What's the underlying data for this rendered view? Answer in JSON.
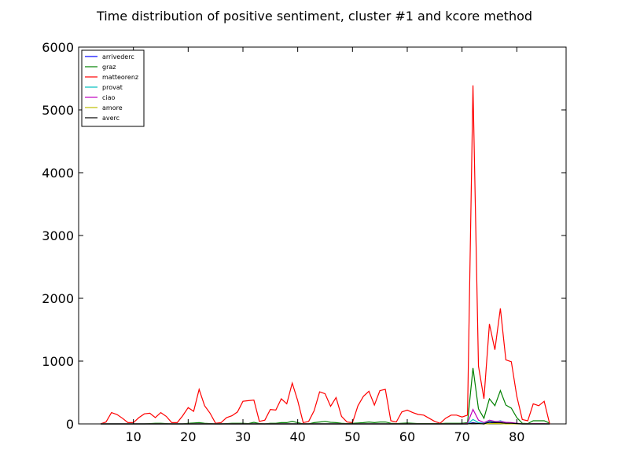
{
  "chart_data": {
    "type": "line",
    "title": "Time distribution of positive sentiment, cluster #1 and kcore method",
    "xlabel": "",
    "ylabel": "",
    "xlim": [
      0,
      89
    ],
    "ylim": [
      0,
      6000
    ],
    "xticks": [
      10,
      20,
      30,
      40,
      50,
      60,
      70,
      80
    ],
    "yticks": [
      0,
      1000,
      2000,
      3000,
      4000,
      5000,
      6000
    ],
    "grid": false,
    "legend_position": "top-left",
    "x": [
      4,
      5,
      6,
      7,
      8,
      9,
      10,
      11,
      12,
      13,
      14,
      15,
      16,
      17,
      18,
      19,
      20,
      21,
      22,
      23,
      24,
      25,
      26,
      27,
      28,
      29,
      30,
      31,
      32,
      33,
      34,
      35,
      36,
      37,
      38,
      39,
      40,
      41,
      42,
      43,
      44,
      45,
      46,
      47,
      48,
      49,
      50,
      51,
      52,
      53,
      54,
      55,
      56,
      57,
      58,
      59,
      60,
      61,
      62,
      63,
      64,
      65,
      66,
      67,
      68,
      69,
      70,
      71,
      72,
      73,
      74,
      75,
      76,
      77,
      78,
      79,
      80,
      81,
      82,
      83,
      84,
      85,
      86
    ],
    "series": [
      {
        "name": "arrivederc",
        "color": "#0000ff",
        "values": [
          0,
          0,
          0,
          0,
          0,
          0,
          0,
          0,
          0,
          0,
          0,
          0,
          0,
          0,
          0,
          0,
          0,
          0,
          0,
          0,
          0,
          0,
          0,
          0,
          0,
          0,
          0,
          0,
          0,
          0,
          0,
          0,
          0,
          0,
          0,
          0,
          0,
          0,
          0,
          0,
          0,
          0,
          0,
          0,
          0,
          0,
          0,
          0,
          0,
          0,
          0,
          0,
          0,
          0,
          0,
          0,
          0,
          0,
          0,
          0,
          0,
          0,
          0,
          0,
          0,
          0,
          0,
          0,
          20,
          5,
          0,
          25,
          15,
          10,
          5,
          5,
          2,
          0,
          0,
          0,
          0,
          0,
          0
        ]
      },
      {
        "name": "graz",
        "color": "#008000",
        "values": [
          0,
          0,
          0,
          0,
          0,
          0,
          0,
          0,
          0,
          5,
          10,
          10,
          5,
          0,
          0,
          0,
          10,
          15,
          20,
          10,
          5,
          0,
          0,
          5,
          10,
          10,
          10,
          5,
          25,
          5,
          0,
          10,
          10,
          20,
          20,
          40,
          20,
          0,
          0,
          20,
          30,
          40,
          25,
          20,
          10,
          5,
          10,
          15,
          20,
          30,
          20,
          30,
          30,
          10,
          5,
          10,
          15,
          10,
          5,
          5,
          5,
          5,
          5,
          10,
          10,
          10,
          10,
          20,
          890,
          240,
          90,
          400,
          290,
          530,
          300,
          250,
          100,
          10,
          5,
          50,
          50,
          50,
          10
        ]
      },
      {
        "name": "matteorenz",
        "color": "#ff0000",
        "values": [
          0,
          30,
          180,
          150,
          90,
          20,
          20,
          100,
          160,
          170,
          100,
          180,
          120,
          20,
          20,
          130,
          260,
          200,
          550,
          290,
          170,
          10,
          20,
          100,
          130,
          190,
          360,
          370,
          380,
          40,
          60,
          230,
          220,
          400,
          320,
          650,
          370,
          20,
          40,
          210,
          510,
          480,
          280,
          420,
          120,
          30,
          20,
          290,
          440,
          520,
          300,
          530,
          550,
          50,
          30,
          190,
          220,
          180,
          150,
          140,
          90,
          40,
          10,
          90,
          140,
          140,
          110,
          140,
          5390,
          920,
          400,
          1590,
          1180,
          1840,
          1020,
          990,
          440,
          70,
          50,
          320,
          290,
          360,
          0
        ]
      },
      {
        "name": "provat",
        "color": "#00bfbf",
        "values": [
          0,
          0,
          0,
          0,
          0,
          0,
          0,
          0,
          0,
          0,
          0,
          0,
          0,
          0,
          0,
          0,
          0,
          0,
          0,
          0,
          0,
          0,
          0,
          0,
          0,
          0,
          0,
          0,
          0,
          0,
          0,
          0,
          0,
          0,
          0,
          0,
          0,
          0,
          0,
          0,
          0,
          0,
          0,
          0,
          0,
          0,
          0,
          0,
          0,
          0,
          0,
          0,
          0,
          0,
          0,
          0,
          0,
          0,
          0,
          0,
          0,
          0,
          0,
          0,
          0,
          0,
          0,
          0,
          70,
          20,
          10,
          40,
          30,
          50,
          20,
          15,
          5,
          0,
          0,
          0,
          0,
          0,
          0
        ]
      },
      {
        "name": "ciao",
        "color": "#bf00bf",
        "values": [
          0,
          0,
          0,
          0,
          0,
          0,
          0,
          0,
          0,
          0,
          0,
          0,
          0,
          0,
          0,
          0,
          0,
          0,
          0,
          0,
          0,
          0,
          0,
          0,
          0,
          0,
          0,
          0,
          0,
          0,
          0,
          0,
          0,
          0,
          0,
          0,
          0,
          0,
          0,
          0,
          0,
          0,
          0,
          0,
          0,
          0,
          0,
          0,
          0,
          0,
          0,
          0,
          0,
          0,
          0,
          0,
          0,
          0,
          0,
          0,
          0,
          0,
          0,
          0,
          0,
          0,
          0,
          10,
          230,
          60,
          20,
          60,
          40,
          40,
          25,
          20,
          10,
          0,
          0,
          5,
          5,
          5,
          0
        ]
      },
      {
        "name": "amore",
        "color": "#bfbf00",
        "values": [
          0,
          0,
          0,
          0,
          0,
          0,
          0,
          0,
          0,
          0,
          0,
          0,
          0,
          0,
          0,
          0,
          0,
          0,
          0,
          0,
          0,
          0,
          0,
          0,
          0,
          0,
          0,
          0,
          0,
          0,
          0,
          0,
          0,
          0,
          0,
          0,
          0,
          0,
          0,
          0,
          0,
          0,
          0,
          0,
          0,
          0,
          0,
          0,
          0,
          0,
          0,
          0,
          0,
          0,
          0,
          0,
          0,
          0,
          0,
          0,
          0,
          0,
          0,
          0,
          0,
          0,
          0,
          0,
          10,
          5,
          0,
          5,
          5,
          5,
          0,
          0,
          0,
          0,
          0,
          0,
          0,
          0,
          0
        ]
      },
      {
        "name": "averc",
        "color": "#000000",
        "values": [
          0,
          0,
          0,
          0,
          0,
          0,
          0,
          0,
          0,
          0,
          0,
          0,
          0,
          0,
          0,
          0,
          0,
          0,
          0,
          0,
          0,
          0,
          0,
          0,
          0,
          0,
          0,
          0,
          0,
          0,
          0,
          0,
          0,
          0,
          0,
          0,
          0,
          0,
          0,
          0,
          0,
          0,
          0,
          0,
          0,
          0,
          0,
          0,
          0,
          0,
          0,
          0,
          0,
          0,
          0,
          0,
          0,
          0,
          0,
          0,
          0,
          0,
          0,
          0,
          0,
          0,
          0,
          0,
          10,
          5,
          0,
          30,
          20,
          20,
          10,
          10,
          5,
          0,
          0,
          0,
          0,
          0,
          0
        ]
      }
    ]
  }
}
